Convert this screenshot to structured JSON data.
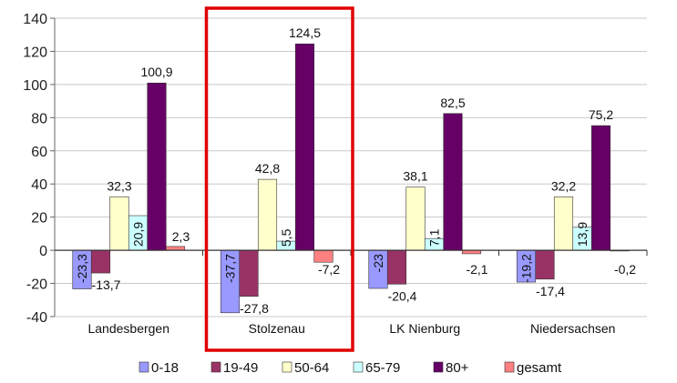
{
  "chart_data": {
    "type": "bar",
    "categories": [
      "Landesbergen",
      "Stolzenau",
      "LK Nienburg",
      "Niedersachsen"
    ],
    "series": [
      {
        "name": "0-18",
        "values": [
          -23.3,
          -37.7,
          -23,
          -19.2
        ],
        "labels": [
          "-23,3",
          "-37,7",
          "-23",
          "-19,2"
        ],
        "color": "#9999ff"
      },
      {
        "name": "19-49",
        "values": [
          -13.7,
          -27.8,
          -20.4,
          -17.4
        ],
        "labels": [
          "-13,7",
          "-27,8",
          "-20,4",
          "-17,4"
        ],
        "color": "#993366"
      },
      {
        "name": "50-64",
        "values": [
          32.3,
          42.8,
          38.1,
          32.2
        ],
        "labels": [
          "32,3",
          "42,8",
          "38,1",
          "32,2"
        ],
        "color": "#ffffcc"
      },
      {
        "name": "65-79",
        "values": [
          20.9,
          5.5,
          7.1,
          13.9
        ],
        "labels": [
          "20,9",
          "5,5",
          "7,1",
          "13,9"
        ],
        "color": "#ccffff"
      },
      {
        "name": "80+",
        "values": [
          100.9,
          124.5,
          82.5,
          75.2
        ],
        "labels": [
          "100,9",
          "124,5",
          "82,5",
          "75,2"
        ],
        "color": "#660066"
      },
      {
        "name": "gesamt",
        "values": [
          2.3,
          -7.2,
          -2.1,
          -0.2
        ],
        "labels": [
          "2,3",
          "-7,2",
          "-2,1",
          "-0,2"
        ],
        "color": "#ff8080"
      }
    ],
    "y_ticks": [
      "140",
      "120",
      "100",
      "80",
      "60",
      "40",
      "20",
      "0",
      "-20",
      "-40"
    ],
    "ylim": [
      -40,
      140
    ],
    "grid": true,
    "legend": "bottom",
    "highlighted_category": "Stolzenau",
    "highlight_color": "#e00000"
  }
}
